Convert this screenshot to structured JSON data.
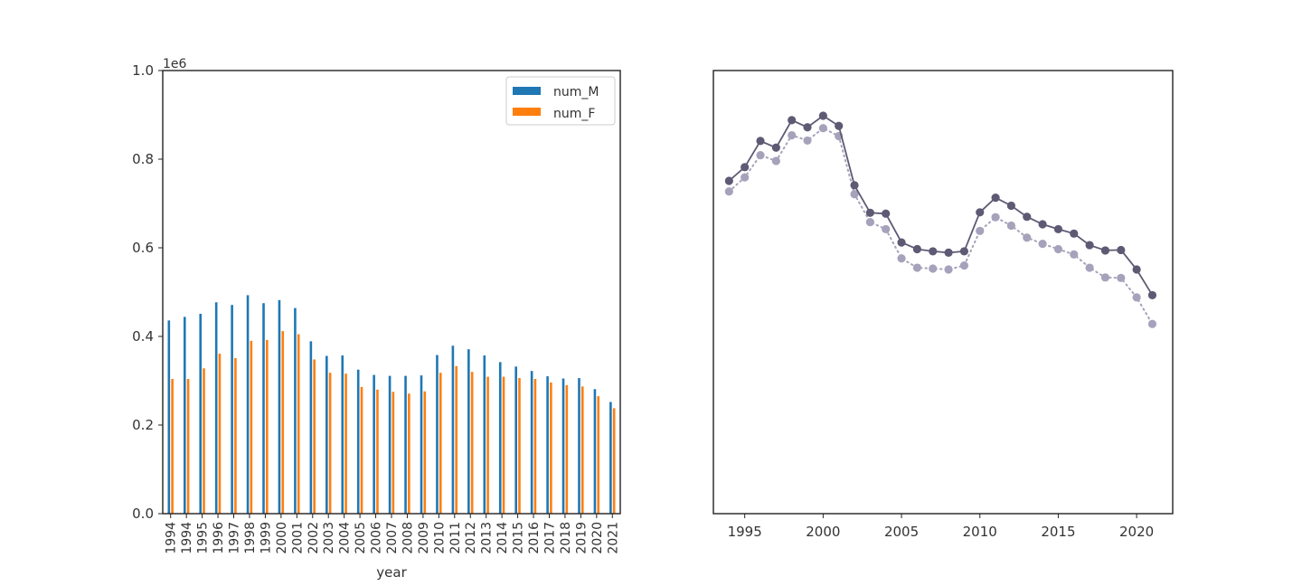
{
  "chart_data": [
    {
      "type": "bar",
      "xlabel": "year",
      "ylabel": "",
      "ylim": [
        0,
        1000000
      ],
      "y_ticks": [
        "0.0",
        "0.2",
        "0.4",
        "0.6",
        "0.8",
        "1.0"
      ],
      "y_tick_values": [
        0,
        200000,
        400000,
        600000,
        800000,
        1000000
      ],
      "y_offset_label": "1e6",
      "legend_position": "top-right",
      "grid": false,
      "categories": [
        "1994",
        "1994",
        "1995",
        "1996",
        "1997",
        "1998",
        "1999",
        "2000",
        "2001",
        "2002",
        "2003",
        "2004",
        "2005",
        "2006",
        "2007",
        "2008",
        "2009",
        "2010",
        "2011",
        "2012",
        "2013",
        "2014",
        "2015",
        "2016",
        "2017",
        "2018",
        "2019",
        "2020",
        "2021"
      ],
      "series": [
        {
          "name": "num_M",
          "color": "#1f77b4",
          "values": [
            436000,
            444000,
            451000,
            477000,
            471000,
            493000,
            475000,
            482000,
            464000,
            389000,
            356000,
            357000,
            325000,
            313000,
            311000,
            311000,
            312000,
            358000,
            379000,
            371000,
            357000,
            342000,
            332000,
            322000,
            310000,
            305000,
            306000,
            281000,
            252000
          ]
        },
        {
          "name": "num_F",
          "color": "#ff7f0e",
          "values": [
            304000,
            304000,
            328000,
            361000,
            351000,
            390000,
            392000,
            412000,
            405000,
            348000,
            318000,
            316000,
            286000,
            280000,
            275000,
            271000,
            276000,
            318000,
            333000,
            320000,
            309000,
            309000,
            306000,
            304000,
            296000,
            290000,
            287000,
            265000,
            238000
          ]
        }
      ]
    },
    {
      "type": "line",
      "xlabel": "",
      "ylabel": "",
      "xlim": [
        1993,
        2022.3
      ],
      "x_ticks": [
        "1995",
        "2000",
        "2005",
        "2010",
        "2015",
        "2020"
      ],
      "x_tick_values": [
        1995,
        2000,
        2005,
        2010,
        2015,
        2020
      ],
      "y_tick_labels_shown": false,
      "grid": false,
      "x": [
        1994,
        1995,
        1996,
        1997,
        1998,
        1999,
        2000,
        2001,
        2002,
        2003,
        2004,
        2005,
        2006,
        2007,
        2008,
        2009,
        2010,
        2011,
        2012,
        2013,
        2014,
        2015,
        2016,
        2017,
        2018,
        2019,
        2020,
        2021
      ],
      "series": [
        {
          "color": "#5e5a74",
          "style": "solid",
          "values": [
            751,
            782,
            841,
            826,
            888,
            872,
            898,
            875,
            741,
            679,
            677,
            612,
            597,
            592,
            589,
            592,
            680,
            713,
            695,
            670,
            653,
            642,
            632,
            606,
            594,
            595,
            551,
            493
          ]
        },
        {
          "color": "#a6a2bb",
          "style": "dotted",
          "values": [
            727,
            759,
            809,
            796,
            854,
            842,
            870,
            852,
            721,
            658,
            642,
            576,
            555,
            553,
            551,
            560,
            638,
            669,
            650,
            623,
            609,
            597,
            585,
            555,
            533,
            532,
            488,
            428
          ]
        }
      ]
    }
  ]
}
